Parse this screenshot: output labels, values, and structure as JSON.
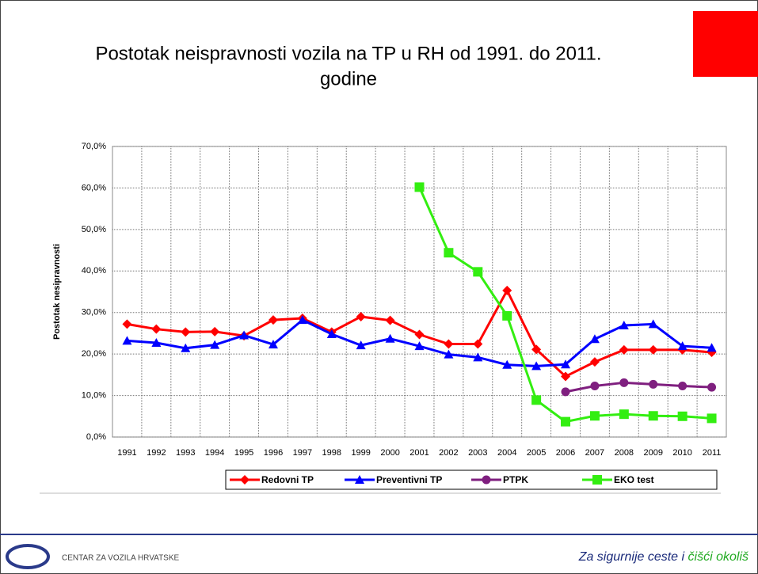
{
  "title": [
    "Postotak neispravnosti vozila na TP u RH od 1991. do 2011.",
    "godine"
  ],
  "chart_data": {
    "type": "line",
    "ylabel": "Postotak nesipravnosti",
    "categories": [
      "1991",
      "1992",
      "1993",
      "1994",
      "1995",
      "1996",
      "1997",
      "1998",
      "1999",
      "2000",
      "2001",
      "2002",
      "2003",
      "2004",
      "2005",
      "2006",
      "2007",
      "2008",
      "2009",
      "2010",
      "2011"
    ],
    "series": [
      {
        "name": "Redovni TP",
        "color": "#ff0000",
        "marker": "diamond",
        "values": [
          27.2,
          26.0,
          25.3,
          25.4,
          24.4,
          28.2,
          28.6,
          25.3,
          29.0,
          28.1,
          24.7,
          22.4,
          22.4,
          35.3,
          21.1,
          14.6,
          18.1,
          21.0,
          21.0,
          21.0,
          20.4
        ]
      },
      {
        "name": "Preventivni TP",
        "color": "#0000ff",
        "marker": "triangle",
        "values": [
          23.2,
          22.7,
          21.4,
          22.2,
          24.5,
          22.3,
          28.2,
          24.8,
          22.1,
          23.7,
          21.9,
          19.9,
          19.2,
          17.4,
          17.1,
          17.5,
          23.6,
          26.9,
          27.2,
          21.9,
          21.5
        ]
      },
      {
        "name": "PTPK",
        "color": "#7f1f7f",
        "marker": "circle",
        "values": [
          null,
          null,
          null,
          null,
          null,
          null,
          null,
          null,
          null,
          null,
          null,
          null,
          null,
          null,
          null,
          10.9,
          12.3,
          13.1,
          12.7,
          12.3,
          12.0
        ]
      },
      {
        "name": "EKO test",
        "color": "#33ee11",
        "marker": "square",
        "values": [
          null,
          null,
          null,
          null,
          null,
          null,
          null,
          null,
          null,
          null,
          60.2,
          44.4,
          39.8,
          29.2,
          8.9,
          3.7,
          5.1,
          5.5,
          5.1,
          5.0,
          4.5
        ]
      }
    ],
    "ylim": [
      0,
      70
    ],
    "yticks": [
      {
        "value": 0,
        "label": "0,0%"
      },
      {
        "value": 10,
        "label": "10,0%"
      },
      {
        "value": 20,
        "label": "20,0%"
      },
      {
        "value": 30,
        "label": "30,0%"
      },
      {
        "value": 40,
        "label": "40,0%"
      },
      {
        "value": 50,
        "label": "50,0%"
      },
      {
        "value": 60,
        "label": "60,0%"
      },
      {
        "value": 70,
        "label": "70,0%"
      }
    ],
    "grid": true,
    "legend": "bottom"
  },
  "footer": {
    "org": "CENTAR ZA VOZILA HRVATSKE",
    "slogan": [
      "Za sigurnije ceste i",
      "čišći okoliš"
    ]
  }
}
